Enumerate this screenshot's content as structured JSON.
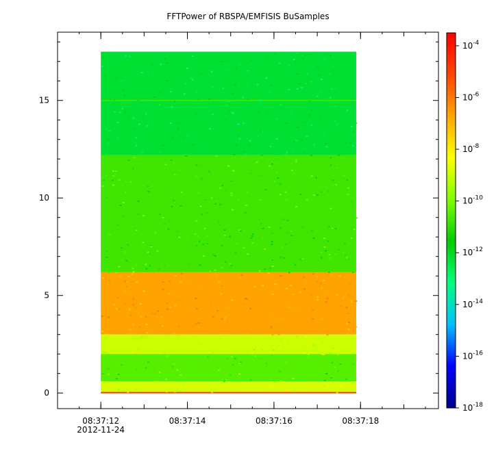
{
  "chart_data": {
    "type": "heatmap",
    "title": "FFTPower of RBSPA/EMFISIS  BuSamples",
    "xlabel": "",
    "ylabel": "",
    "x_ticks": [
      {
        "time": "08:37:12",
        "sub": "2012-11-24"
      },
      {
        "time": "08:37:14",
        "sub": ""
      },
      {
        "time": "08:37:16",
        "sub": ""
      },
      {
        "time": "08:37:18",
        "sub": ""
      }
    ],
    "x_range_seconds": [
      11.0,
      19.8
    ],
    "data_x_range_seconds": [
      12.0,
      17.9
    ],
    "y_ticks": [
      0,
      5,
      10,
      15
    ],
    "y_range": [
      -0.8,
      18.5
    ],
    "data_y_range": [
      0,
      17.5
    ],
    "colorbar": {
      "scale": "log",
      "range_exponent": [
        -18,
        -3.5
      ],
      "ticks": [
        {
          "base": "10",
          "exp": "-4",
          "value": -4
        },
        {
          "base": "10",
          "exp": "-6",
          "value": -6
        },
        {
          "base": "10",
          "exp": "-8",
          "value": -8
        },
        {
          "base": "10",
          "exp": "-10",
          "value": -10
        },
        {
          "base": "10",
          "exp": "-12",
          "value": -12
        },
        {
          "base": "10",
          "exp": "-14",
          "value": -14
        },
        {
          "base": "10",
          "exp": "-16",
          "value": -16
        },
        {
          "base": "10",
          "exp": "-18",
          "value": -18
        }
      ],
      "colors": [
        "#00008b",
        "#0000ff",
        "#00bfff",
        "#00ff7f",
        "#00cc00",
        "#7fff00",
        "#ffff00",
        "#ffa500",
        "#ff4500",
        "#ff0000"
      ]
    },
    "bands": [
      {
        "y": [
          12.2,
          17.5
        ],
        "level": 0.4
      },
      {
        "y": [
          6.2,
          12.2
        ],
        "level": 0.5
      },
      {
        "y": [
          3.0,
          6.2
        ],
        "level": 0.78
      },
      {
        "y": [
          2.0,
          3.0
        ],
        "level": 0.62
      },
      {
        "y": [
          0.6,
          2.0
        ],
        "level": 0.52
      },
      {
        "y": [
          0.05,
          0.6
        ],
        "level": 0.63
      }
    ],
    "lines": [
      {
        "y": 15.0,
        "level": 0.5
      },
      {
        "y": 0.02,
        "level": 0.92
      }
    ]
  }
}
